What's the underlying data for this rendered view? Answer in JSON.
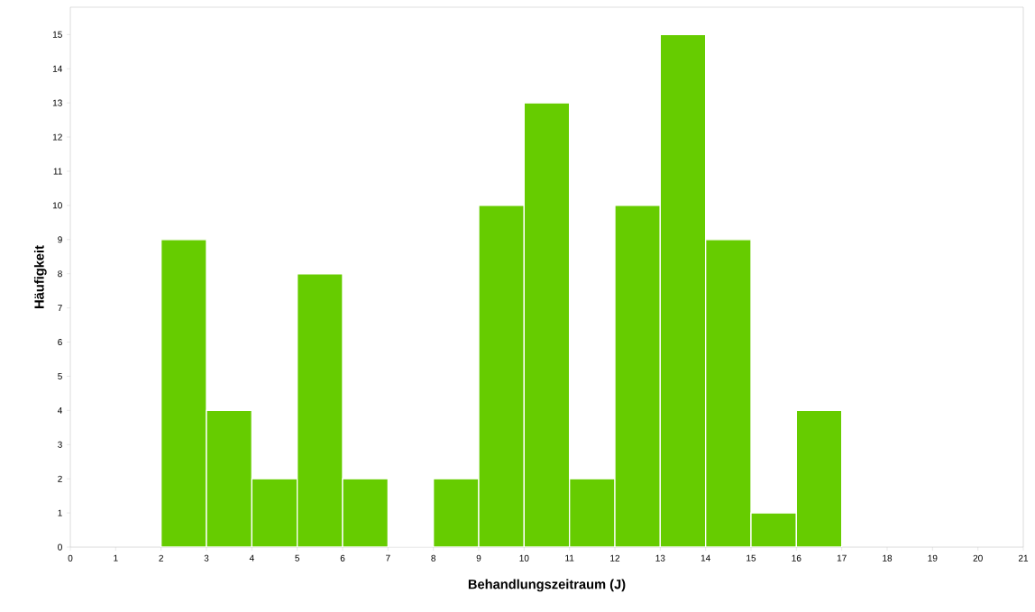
{
  "chart_data": {
    "type": "histogram",
    "xlabel": "Behandlungszeitraum (J)",
    "ylabel": "Häufigkeit",
    "bins": [
      2,
      3,
      4,
      5,
      6,
      7,
      8,
      9,
      10,
      11,
      12,
      13,
      14,
      15,
      16,
      17
    ],
    "values": [
      9,
      4,
      2,
      8,
      2,
      0,
      2,
      10,
      13,
      2,
      10,
      15,
      9,
      1,
      4
    ],
    "color": "#66cc00",
    "xlim": [
      0,
      21
    ],
    "ylim": [
      0,
      15.8
    ],
    "xticks": [
      0,
      1,
      2,
      3,
      4,
      5,
      6,
      7,
      8,
      9,
      10,
      11,
      12,
      13,
      14,
      15,
      16,
      17,
      18,
      19,
      20,
      21
    ],
    "yticks": [
      0,
      1,
      2,
      3,
      4,
      5,
      6,
      7,
      8,
      9,
      10,
      11,
      12,
      13,
      14,
      15
    ],
    "grid": false
  }
}
